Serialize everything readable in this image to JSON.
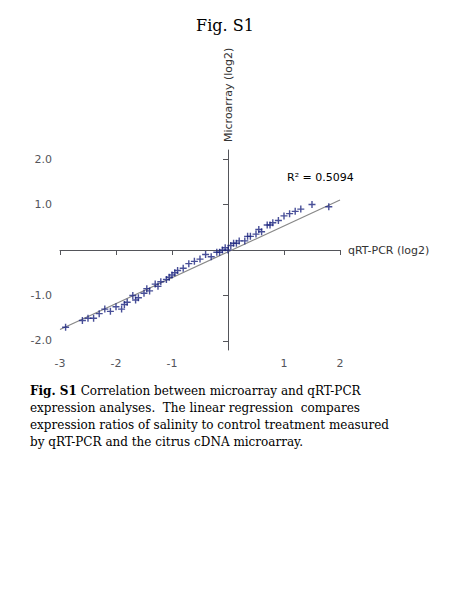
{
  "chart_data": {
    "type": "scatter",
    "title": "Fig. S1",
    "xlabel": "qRT-PCR (log2)",
    "ylabel": "Microarray (log2)",
    "annotations": [
      "R² = 0.5094"
    ],
    "caption_bold": "Fig. S1",
    "caption": " Correlation between microarray and qRT-PCR\nexpression analyses.  The linear regression  compares\nexpression ratios of salinity to control treatment measured\nby qRT-PCR and the citrus cDNA microarray.",
    "xlim": [
      -3,
      2
    ],
    "ylim": [
      -2.2,
      2.2
    ],
    "xticks": [
      -3,
      -2,
      -1,
      1,
      2
    ],
    "yticks": [
      {
        "value": -2.0,
        "label": "-2.0"
      },
      {
        "value": -1.0,
        "label": "-1.0"
      },
      {
        "value": 1.0,
        "label": "1.0"
      },
      {
        "value": 2.0,
        "label": "2.0"
      }
    ],
    "grid": false,
    "series": [
      {
        "type": "line",
        "color": "#888888",
        "x": [
          -3.0,
          2.0
        ],
        "values": [
          -1.75,
          1.1
        ]
      },
      {
        "type": "scatter",
        "color": "#1a237e",
        "marker": "plus",
        "x": [
          -2.9,
          -2.6,
          -2.5,
          -2.4,
          -2.3,
          -2.2,
          -2.1,
          -2.0,
          -1.9,
          -1.85,
          -1.8,
          -1.7,
          -1.65,
          -1.6,
          -1.5,
          -1.45,
          -1.4,
          -1.3,
          -1.25,
          -1.2,
          -1.1,
          -1.05,
          -1.0,
          -0.95,
          -0.9,
          -0.8,
          -0.7,
          -0.6,
          -0.5,
          -0.4,
          -0.3,
          -0.2,
          -0.15,
          -0.1,
          -0.05,
          0.0,
          0.05,
          0.1,
          0.15,
          0.2,
          0.3,
          0.35,
          0.4,
          0.5,
          0.55,
          0.6,
          0.7,
          0.75,
          0.8,
          0.9,
          1.0,
          1.1,
          1.2,
          1.3,
          1.5,
          1.8
        ],
        "values": [
          -1.7,
          -1.55,
          -1.5,
          -1.5,
          -1.4,
          -1.3,
          -1.35,
          -1.25,
          -1.3,
          -1.2,
          -1.15,
          -1.0,
          -1.1,
          -1.05,
          -0.95,
          -0.85,
          -0.9,
          -0.75,
          -0.8,
          -0.7,
          -0.65,
          -0.6,
          -0.55,
          -0.5,
          -0.45,
          -0.4,
          -0.3,
          -0.25,
          -0.2,
          -0.1,
          -0.15,
          -0.05,
          -0.05,
          0.0,
          0.05,
          0.0,
          0.1,
          0.15,
          0.15,
          0.2,
          0.2,
          0.3,
          0.3,
          0.35,
          0.45,
          0.4,
          0.55,
          0.55,
          0.6,
          0.65,
          0.75,
          0.8,
          0.85,
          0.9,
          1.0,
          0.95
        ]
      }
    ]
  }
}
